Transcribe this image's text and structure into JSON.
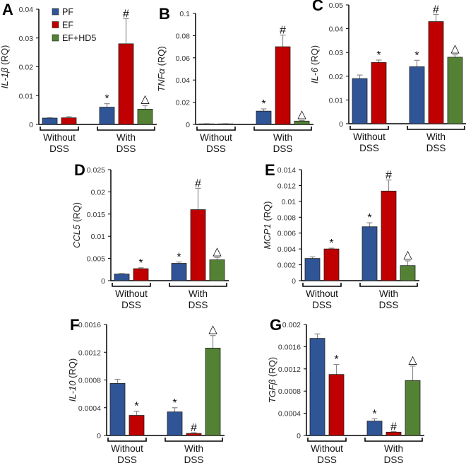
{
  "legend": [
    {
      "name": "PF",
      "color": "#2f5597"
    },
    {
      "name": "EF",
      "color": "#c00000"
    },
    {
      "name": "EF+HD5",
      "color": "#548235"
    }
  ],
  "chart_data": [
    {
      "type": "bar",
      "panel": "A",
      "ylabel_gene": "IL-1β",
      "ylabel_unit": " (RQ)",
      "ylim": [
        0,
        0.04
      ],
      "yticks": [
        "0",
        "0.01",
        "0.02",
        "0.03",
        "0.04"
      ],
      "groups": [
        {
          "label": [
            "Without",
            "DSS"
          ],
          "bars": [
            {
              "series": "PF",
              "value": 0.0022,
              "error": 0.0001,
              "marker": ""
            },
            {
              "series": "EF",
              "value": 0.0023,
              "error": 0.0004,
              "marker": ""
            }
          ]
        },
        {
          "label": [
            "With",
            "DSS"
          ],
          "bars": [
            {
              "series": "PF",
              "value": 0.006,
              "error": 0.0012,
              "marker": "*"
            },
            {
              "series": "EF",
              "value": 0.028,
              "error": 0.0087,
              "marker": "#"
            },
            {
              "series": "EF+HD5",
              "value": 0.0053,
              "error": 0.0013,
              "marker": "△"
            }
          ]
        }
      ]
    },
    {
      "type": "bar",
      "panel": "B",
      "ylabel_gene": "TNFα",
      "ylabel_unit": " (RQ)",
      "ylim": [
        0,
        0.1
      ],
      "yticks": [
        "0",
        "0.02",
        "0.04",
        "0.06",
        "0.08",
        "0.1"
      ],
      "groups": [
        {
          "label": [
            "Without",
            "DSS"
          ],
          "bars": [
            {
              "series": "PF",
              "value": 0.0005,
              "error": 0.0001,
              "marker": ""
            },
            {
              "series": "EF",
              "value": 0.0005,
              "error": 0.0001,
              "marker": ""
            }
          ]
        },
        {
          "label": [
            "With",
            "DSS"
          ],
          "bars": [
            {
              "series": "PF",
              "value": 0.012,
              "error": 0.002,
              "marker": "*"
            },
            {
              "series": "EF",
              "value": 0.07,
              "error": 0.0105,
              "marker": "#"
            },
            {
              "series": "EF+HD5",
              "value": 0.003,
              "error": 0.0005,
              "marker": "△"
            }
          ]
        }
      ]
    },
    {
      "type": "bar",
      "panel": "C",
      "ylabel_gene": "IL-6",
      "ylabel_unit": " (RQ)",
      "ylim": [
        0,
        0.05
      ],
      "yticks": [
        "0",
        "0.01",
        "0.02",
        "0.03",
        "0.04",
        "0.05"
      ],
      "groups": [
        {
          "label": [
            "Without",
            "DSS"
          ],
          "bars": [
            {
              "series": "PF",
              "value": 0.019,
              "error": 0.0015,
              "marker": ""
            },
            {
              "series": "EF",
              "value": 0.0258,
              "error": 0.001,
              "marker": "*"
            }
          ]
        },
        {
          "label": [
            "With",
            "DSS"
          ],
          "bars": [
            {
              "series": "PF",
              "value": 0.024,
              "error": 0.0027,
              "marker": "*"
            },
            {
              "series": "EF",
              "value": 0.043,
              "error": 0.003,
              "marker": "#"
            },
            {
              "series": "EF+HD5",
              "value": 0.028,
              "error": 0.001,
              "marker": "△"
            }
          ]
        }
      ]
    },
    {
      "type": "bar",
      "panel": "D",
      "ylabel_gene": "CCL5",
      "ylabel_unit": " (RQ)",
      "ylim": [
        0,
        0.025
      ],
      "yticks": [
        "0",
        "0.005",
        "0.01",
        "0.015",
        "0.02",
        "0.025"
      ],
      "groups": [
        {
          "label": [
            "Without",
            "DSS"
          ],
          "bars": [
            {
              "series": "PF",
              "value": 0.0015,
              "error": 0.0001,
              "marker": ""
            },
            {
              "series": "EF",
              "value": 0.0027,
              "error": 0.0002,
              "marker": "*"
            }
          ]
        },
        {
          "label": [
            "With",
            "DSS"
          ],
          "bars": [
            {
              "series": "PF",
              "value": 0.0039,
              "error": 0.0003,
              "marker": "*"
            },
            {
              "series": "EF",
              "value": 0.016,
              "error": 0.0048,
              "marker": "#"
            },
            {
              "series": "EF+HD5",
              "value": 0.0047,
              "error": 0.0005,
              "marker": "△"
            }
          ]
        }
      ]
    },
    {
      "type": "bar",
      "panel": "E",
      "ylabel_gene": "MCP1",
      "ylabel_unit": " (RQ)",
      "ylim": [
        0,
        0.014
      ],
      "yticks": [
        "0",
        "0.002",
        "0.004",
        "0.006",
        "0.008",
        "0.01",
        "0.012",
        "0.014"
      ],
      "groups": [
        {
          "label": [
            "Without",
            "DSS"
          ],
          "bars": [
            {
              "series": "PF",
              "value": 0.0028,
              "error": 0.0002,
              "marker": ""
            },
            {
              "series": "EF",
              "value": 0.004,
              "error": 0.0001,
              "marker": "*"
            }
          ]
        },
        {
          "label": [
            "With",
            "DSS"
          ],
          "bars": [
            {
              "series": "PF",
              "value": 0.0068,
              "error": 0.0005,
              "marker": "*"
            },
            {
              "series": "EF",
              "value": 0.0113,
              "error": 0.0014,
              "marker": "#"
            },
            {
              "series": "EF+HD5",
              "value": 0.0019,
              "error": 0.0006,
              "marker": "△"
            }
          ]
        }
      ]
    },
    {
      "type": "bar",
      "panel": "F",
      "ylabel_gene": "IL-10",
      "ylabel_unit": " (RQ)",
      "ylim": [
        0,
        0.0016
      ],
      "yticks": [
        "0",
        "0.0004",
        "0.0008",
        "0.0012",
        "0.0016"
      ],
      "groups": [
        {
          "label": [
            "Without",
            "DSS"
          ],
          "bars": [
            {
              "series": "PF",
              "value": 0.00075,
              "error": 6e-05,
              "marker": ""
            },
            {
              "series": "EF",
              "value": 0.00029,
              "error": 6e-05,
              "marker": "*"
            }
          ]
        },
        {
          "label": [
            "With",
            "DSS"
          ],
          "bars": [
            {
              "series": "PF",
              "value": 0.00034,
              "error": 6e-05,
              "marker": "*"
            },
            {
              "series": "EF",
              "value": 3e-05,
              "error": 1e-05,
              "marker": "#"
            },
            {
              "series": "EF+HD5",
              "value": 0.00126,
              "error": 0.00018,
              "marker": "△"
            }
          ]
        }
      ]
    },
    {
      "type": "bar",
      "panel": "G",
      "ylabel_gene": "TGFβ",
      "ylabel_unit": " (RQ)",
      "ylim": [
        0,
        0.002
      ],
      "yticks": [
        "0",
        "0.0004",
        "0.0008",
        "0.0012",
        "0.0016",
        "0.002"
      ],
      "groups": [
        {
          "label": [
            "Without",
            "DSS"
          ],
          "bars": [
            {
              "series": "PF",
              "value": 0.00175,
              "error": 8e-05,
              "marker": ""
            },
            {
              "series": "EF",
              "value": 0.0011,
              "error": 0.00018,
              "marker": "*"
            }
          ]
        },
        {
          "label": [
            "With",
            "DSS"
          ],
          "bars": [
            {
              "series": "PF",
              "value": 0.00026,
              "error": 4e-05,
              "marker": "*"
            },
            {
              "series": "EF",
              "value": 6e-05,
              "error": 1e-05,
              "marker": "#"
            },
            {
              "series": "EF+HD5",
              "value": 0.00099,
              "error": 0.00026,
              "marker": "△"
            }
          ]
        }
      ]
    }
  ]
}
